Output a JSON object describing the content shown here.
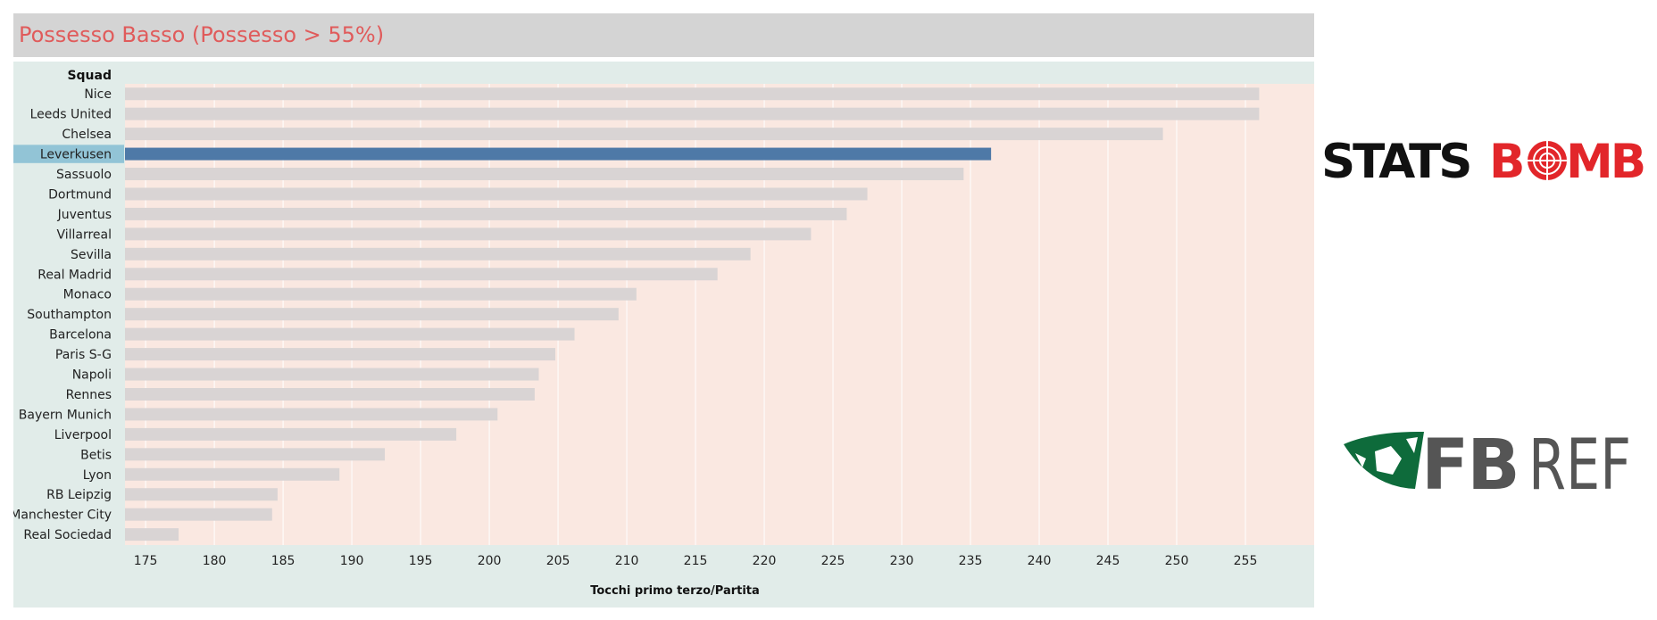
{
  "title": "Possesso Basso (Possesso > 55%)",
  "colors": {
    "title": "#e05b5b",
    "bar": "#d9d4d4",
    "highlight_bar": "#4e79a7",
    "highlight_label_bg": "#92c4d6",
    "plot_bg": "#fae8e1"
  },
  "logos": {
    "statsbomb": {
      "text_left": "STATS",
      "text_mid": "B",
      "text_right": "MB"
    },
    "fbref": {
      "text_left": "FB",
      "text_right": "REF"
    }
  },
  "chart_data": {
    "type": "bar",
    "orientation": "horizontal",
    "row_header": "Squad",
    "xlabel": "Tocchi primo terzo/Partita",
    "xlim": [
      173.5,
      260
    ],
    "xticks": [
      175,
      180,
      185,
      190,
      195,
      200,
      205,
      210,
      215,
      220,
      225,
      230,
      235,
      240,
      245,
      250,
      255
    ],
    "grid": true,
    "highlight": "Leverkusen",
    "categories": [
      "Nice",
      "Leeds United",
      "Chelsea",
      "Leverkusen",
      "Sassuolo",
      "Dortmund",
      "Juventus",
      "Villarreal",
      "Sevilla",
      "Real Madrid",
      "Monaco",
      "Southampton",
      "Barcelona",
      "Paris S-G",
      "Napoli",
      "Rennes",
      "Bayern Munich",
      "Liverpool",
      "Betis",
      "Lyon",
      "RB Leipzig",
      "Manchester City",
      "Real Sociedad"
    ],
    "values": [
      256.0,
      256.0,
      249.0,
      236.5,
      234.5,
      227.5,
      226.0,
      223.4,
      219.0,
      216.6,
      210.7,
      209.4,
      206.2,
      204.8,
      203.6,
      203.3,
      200.6,
      197.6,
      192.4,
      189.1,
      184.6,
      184.2,
      177.4
    ]
  }
}
